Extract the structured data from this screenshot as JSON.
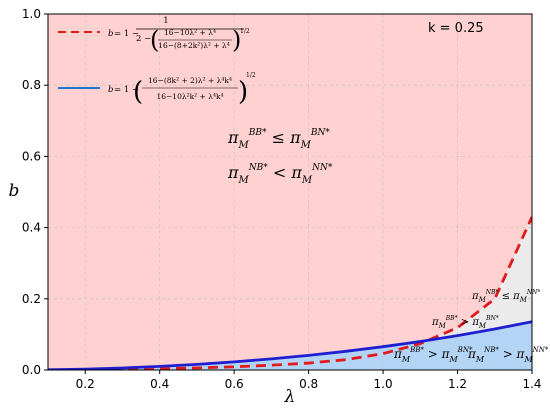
{
  "chart_data": {
    "type": "area",
    "title": "",
    "xlabel": "λ",
    "ylabel": "b",
    "xlim": [
      0.1,
      1.4
    ],
    "ylim": [
      0,
      1.0
    ],
    "xticks": [
      0.2,
      0.4,
      0.6,
      0.8,
      1.0,
      1.2,
      1.4
    ],
    "xtick_labels": [
      "0.2",
      "0.4",
      "0.6",
      "0.8",
      "1.0",
      "1.2",
      "1.4"
    ],
    "yticks": [
      0.0,
      0.2,
      0.4,
      0.6,
      0.8,
      1.0
    ],
    "ytick_labels": [
      "0.0",
      "0.2",
      "0.4",
      "0.6",
      "0.8",
      "1.0"
    ],
    "grid": true,
    "legend_position": "top-left",
    "parameter_label": "k = 0.25",
    "k": 0.25,
    "series": [
      {
        "name": "b = 1 − 1 / (2 − ((16 − 10λ² + λ⁴) / (16 − (8+2k²)λ² + λ⁴))^(1/2))",
        "style": "dashed",
        "color": "#e31a1c",
        "x": [
          0.1,
          0.2,
          0.3,
          0.4,
          0.5,
          0.6,
          0.7,
          0.8,
          0.9,
          1.0,
          1.1,
          1.2,
          1.3,
          1.4
        ],
        "y": [
          0.0002,
          0.0008,
          0.0018,
          0.0035,
          0.006,
          0.009,
          0.0135,
          0.0195,
          0.029,
          0.046,
          0.074,
          0.119,
          0.2,
          0.43
        ]
      },
      {
        "name": "b = 1 − ((16 − (8k² + 2)λ² + λ⁴k⁴) / (16 − 10λ²k² + λ⁴k⁴))^(1/2)",
        "style": "solid",
        "color": "#1f1fd1",
        "x": [
          0.1,
          0.2,
          0.3,
          0.4,
          0.5,
          0.6,
          0.7,
          0.8,
          0.9,
          1.0,
          1.1,
          1.2,
          1.3,
          1.4
        ],
        "y": [
          0.0006,
          0.0025,
          0.0057,
          0.0101,
          0.0158,
          0.0229,
          0.0313,
          0.0411,
          0.0525,
          0.0655,
          0.0801,
          0.0966,
          0.1151,
          0.1356
        ]
      }
    ],
    "regions": [
      {
        "label_line1": "π_M^{BB*} ≤ π_M^{BN*}",
        "label_line2": "π_M^{NB*} < π_M^{NN*}",
        "color": "#ffd1d1"
      },
      {
        "label_line1": "π_M^{NB*} ≤ π_M^{NN*}",
        "label_line2": "π_M^{BB*} > π_M^{BN*}",
        "color": "#ebebeb"
      },
      {
        "label_line1": "π_M^{BB*} > π_M^{BN*}",
        "label_line2": "π_M^{NB*} > π_M^{NN*}",
        "color": "#b3d4f5"
      }
    ]
  }
}
